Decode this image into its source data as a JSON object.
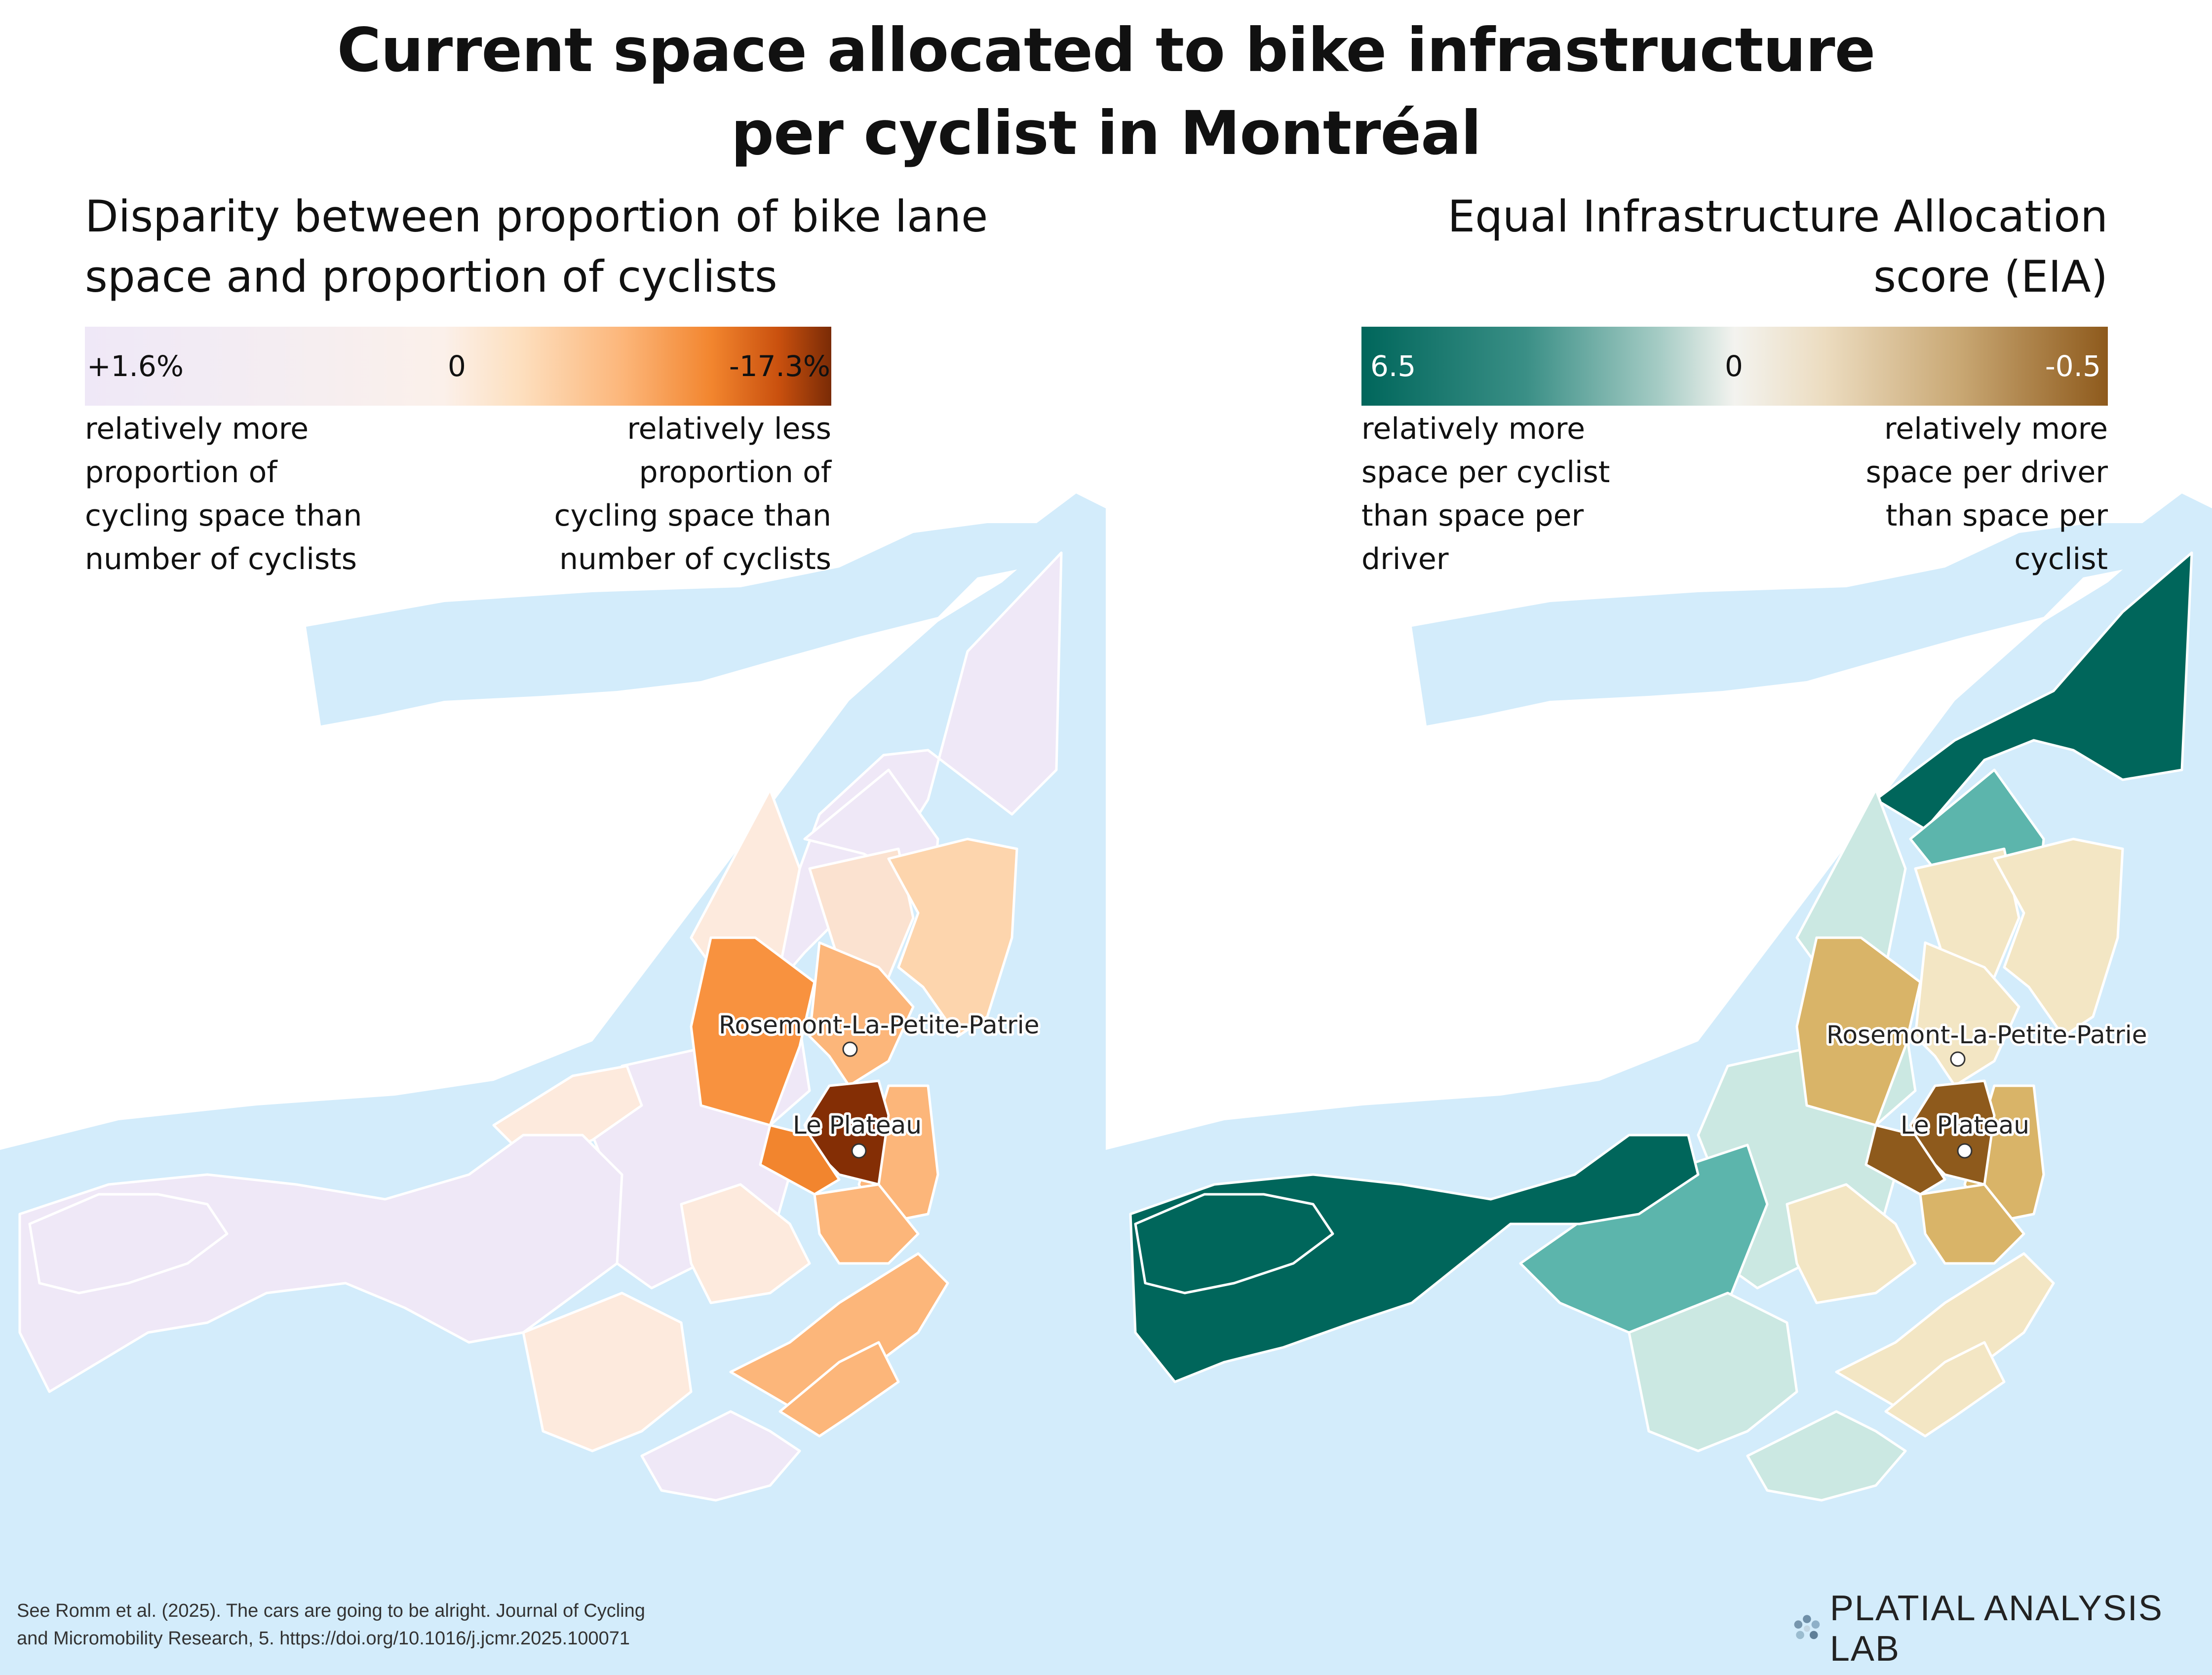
{
  "title_lines": [
    "Current space allocated to bike infrastructure",
    "per cyclist in Montréal"
  ],
  "left_panel": {
    "subtitle_lines": [
      "Disparity between proportion of bike lane",
      "space and proportion of cyclists"
    ],
    "legend": {
      "min_label": "+1.6%",
      "mid_label": "0",
      "max_label": "-17.3%",
      "left_desc_lines": [
        "relatively more",
        "proportion of",
        "cycling space than",
        "number of cyclists"
      ],
      "right_desc_lines": [
        "relatively less",
        "proportion of",
        "cycling space than",
        "number of cyclists"
      ],
      "colors": [
        "#efe8f7",
        "#fbf0ea",
        "#fcb67a",
        "#f2852e",
        "#7a2b06"
      ]
    },
    "place_labels": [
      "Rosemont-La-Petite-Patrie",
      "Le Plateau"
    ]
  },
  "right_panel": {
    "subtitle_lines": [
      "Equal Infrastructure Allocation",
      "score (EIA)"
    ],
    "legend": {
      "min_label": "6.5",
      "mid_label": "0",
      "max_label": "-0.5",
      "left_desc_lines": [
        "relatively more",
        "space per cyclist",
        "than space per",
        "driver"
      ],
      "right_desc_lines": [
        "relatively more",
        "space per driver",
        "than space per",
        "cyclist"
      ],
      "colors": [
        "#00665b",
        "#5cb5ac",
        "#cbe8e2",
        "#f3e6c4",
        "#d9b468",
        "#8e5a1c"
      ]
    },
    "place_labels": [
      "Rosemont-La-Petite-Patrie",
      "Le Plateau"
    ]
  },
  "citation_lines": [
    "See Romm et al. (2025). The cars are going to be alright. Journal of Cycling",
    "and Micromobility Research, 5. https://doi.org/10.1016/j.jcmr.2025.100071"
  ],
  "logo_text": "PLATIAL ANALYSIS LAB",
  "water_color": "#d3ecfb",
  "background_color": "#ffffff"
}
